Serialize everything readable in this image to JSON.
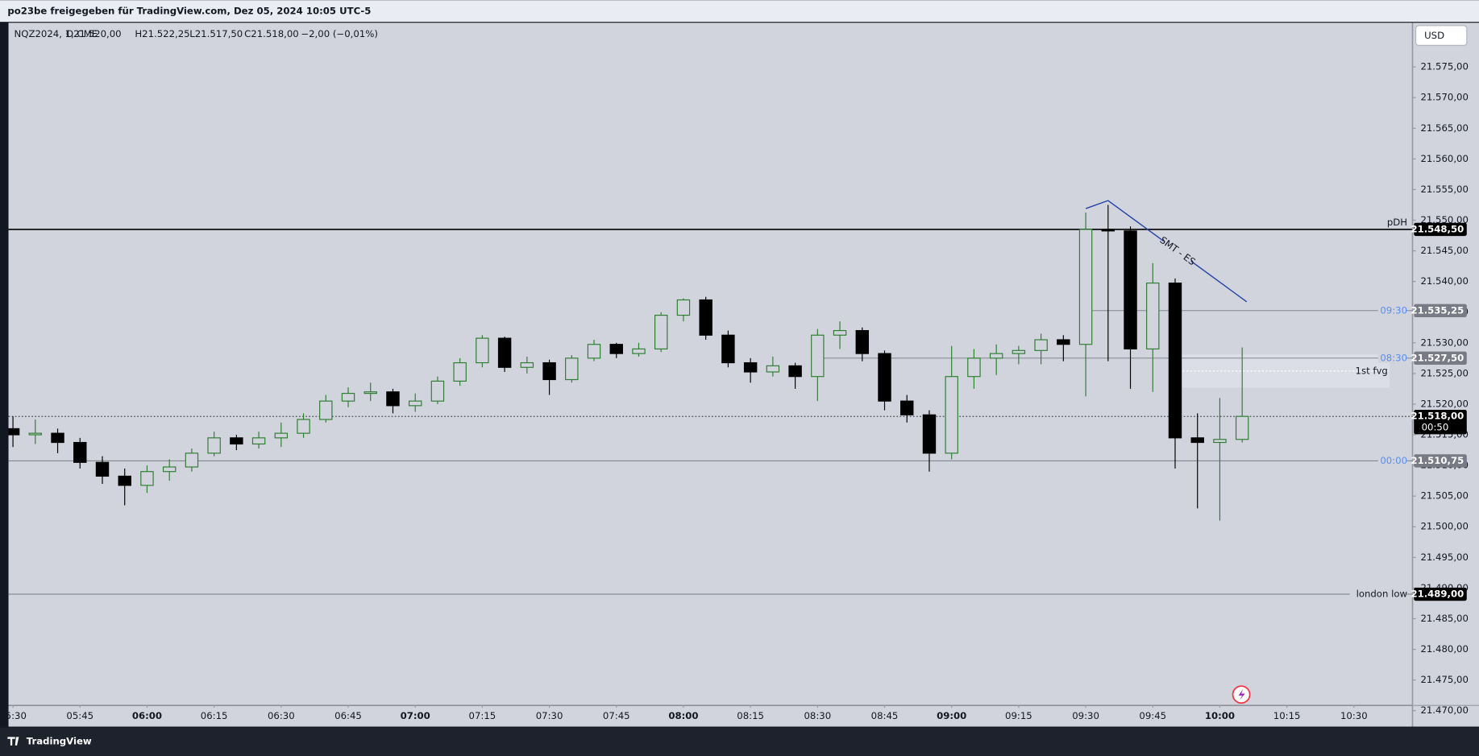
{
  "header": {
    "title": "po23be freigegeben für TradingView.com, Dez 05, 2024 10:05 UTC-5"
  },
  "footer": {
    "brand": "TradingView"
  },
  "chart_data": {
    "type": "candlestick",
    "legend": {
      "symbol": "NQZ2024, 1, CME",
      "ohlc": [
        "O21.520,00",
        "H21.522,25",
        "L21.517,50",
        "C21.518,00"
      ],
      "change": "−2,00 (−0,01%)"
    },
    "currency": "USD",
    "up_color": "#2e7d32",
    "down_color": "#000000",
    "x": [
      "05:30",
      "05:35",
      "05:40",
      "05:45",
      "05:50",
      "05:55",
      "06:00",
      "06:05",
      "06:10",
      "06:15",
      "06:20",
      "06:25",
      "06:30",
      "06:35",
      "06:40",
      "06:45",
      "06:50",
      "06:55",
      "07:00",
      "07:05",
      "07:10",
      "07:15",
      "07:20",
      "07:25",
      "07:30",
      "07:35",
      "07:40",
      "07:45",
      "07:50",
      "07:55",
      "08:00",
      "08:05",
      "08:10",
      "08:15",
      "08:20",
      "08:25",
      "08:30",
      "08:35",
      "08:40",
      "08:45",
      "08:50",
      "08:55",
      "09:00",
      "09:05",
      "09:10",
      "09:15",
      "09:20",
      "09:25",
      "09:30",
      "09:35",
      "09:40",
      "09:45",
      "09:50",
      "09:55",
      "10:00",
      "10:05"
    ],
    "open": [
      21516,
      21515,
      21515.25,
      21513.75,
      21510.5,
      21508.25,
      21506.75,
      21509,
      21509.75,
      21512,
      21514.5,
      21513.5,
      21514.5,
      21515.25,
      21517.5,
      21520.5,
      21521.75,
      21522,
      21519.75,
      21520.5,
      21523.75,
      21526.75,
      21530.75,
      21526,
      21526.75,
      21524,
      21527.5,
      21529.75,
      21528.25,
      21529,
      21534.5,
      21537,
      21531.25,
      21526.75,
      21525.25,
      21526.25,
      21524.5,
      21531.25,
      21532,
      21528.25,
      21520.5,
      21518.25,
      21512,
      21524.5,
      21527.5,
      21528.25,
      21528.75,
      21530.5,
      21529.75,
      21548.5,
      21548.25,
      21529,
      21539.75,
      21514.5,
      21513.75,
      21514.25
    ],
    "high": [
      21518,
      21517.5,
      21516,
      21514.5,
      21511.5,
      21509.5,
      21510,
      21511,
      21512.75,
      21515.5,
      21515,
      21515.5,
      21517,
      21518.5,
      21521.5,
      21522.75,
      21523.5,
      21522.5,
      21521.75,
      21524.5,
      21527.5,
      21531.25,
      21531,
      21527.75,
      21527.25,
      21528,
      21530.5,
      21530,
      21530,
      21535,
      21537.25,
      21537.5,
      21532,
      21527.5,
      21527.75,
      21526.75,
      21532.25,
      21533.5,
      21532.5,
      21528.75,
      21521.5,
      21519,
      21529.5,
      21529,
      21529.75,
      21529.5,
      21531.5,
      21531.25,
      21551.25,
      21552.5,
      21549,
      21543,
      21540.5,
      21518.5,
      21521,
      21529.25
    ],
    "low": [
      21513,
      21513.5,
      21512,
      21509.5,
      21507,
      21503.5,
      21505.5,
      21507.5,
      21509,
      21511.5,
      21512.5,
      21512.75,
      21513,
      21514.5,
      21517,
      21519.5,
      21520.5,
      21518.5,
      21518.75,
      21520,
      21523,
      21526,
      21525.25,
      21525,
      21521.5,
      21523.5,
      21527,
      21527.5,
      21527.75,
      21528.5,
      21533.5,
      21530.5,
      21526,
      21523.5,
      21524.5,
      21522.5,
      21520.5,
      21529,
      21527,
      21519,
      21517,
      21509,
      21511,
      21522.5,
      21524.75,
      21526.5,
      21526.5,
      21527,
      21521.25,
      21527,
      21522.5,
      21522,
      21509.5,
      21503,
      21501,
      21513.75
    ],
    "close": [
      21515,
      21515.25,
      21513.75,
      21510.5,
      21508.25,
      21506.75,
      21509,
      21509.75,
      21512,
      21514.5,
      21513.5,
      21514.5,
      21515.25,
      21517.5,
      21520.5,
      21521.75,
      21522,
      21519.75,
      21520.5,
      21523.75,
      21526.75,
      21530.75,
      21526,
      21526.75,
      21524,
      21527.5,
      21529.75,
      21528.25,
      21529,
      21534.5,
      21537,
      21531.25,
      21526.75,
      21525.25,
      21526.25,
      21524.5,
      21531.25,
      21532,
      21528.25,
      21520.5,
      21518.25,
      21512,
      21524.5,
      21527.5,
      21528.25,
      21528.75,
      21530.5,
      21529.75,
      21548.5,
      21548.25,
      21529,
      21539.75,
      21514.5,
      21513.75,
      21514.25,
      21518
    ],
    "xlim": [
      "05:29",
      "10:43"
    ],
    "xticks": [
      "05:30",
      "05:45",
      "06:00",
      "06:15",
      "06:30",
      "06:45",
      "07:00",
      "07:15",
      "07:30",
      "07:45",
      "08:00",
      "08:15",
      "08:30",
      "08:45",
      "09:00",
      "09:15",
      "09:30",
      "09:45",
      "10:00",
      "10:15",
      "10:30"
    ],
    "ylim": [
      21467.4,
      21582.2
    ],
    "yticks": [
      {
        "value": 21470,
        "label": "21.470,00"
      },
      {
        "value": 21475,
        "label": "21.475,00"
      },
      {
        "value": 21480,
        "label": "21.480,00"
      },
      {
        "value": 21485,
        "label": "21.485,00"
      },
      {
        "value": 21490,
        "label": "21.490,00"
      },
      {
        "value": 21495,
        "label": "21.495,00"
      },
      {
        "value": 21500,
        "label": "21.500,00"
      },
      {
        "value": 21505,
        "label": "21.505,00"
      },
      {
        "value": 21510,
        "label": "21.510,00"
      },
      {
        "value": 21515,
        "label": "21.515,00"
      },
      {
        "value": 21520,
        "label": "21.520,00"
      },
      {
        "value": 21525,
        "label": "21.525,00"
      },
      {
        "value": 21530,
        "label": "21.530,00"
      },
      {
        "value": 21535,
        "label": "21.535,00"
      },
      {
        "value": 21540,
        "label": "21.540,00"
      },
      {
        "value": 21545,
        "label": "21.545,00"
      },
      {
        "value": 21550,
        "label": "21.550,00"
      },
      {
        "value": 21555,
        "label": "21.555,00"
      },
      {
        "value": 21560,
        "label": "21.560,00"
      },
      {
        "value": 21565,
        "label": "21.565,00"
      },
      {
        "value": 21570,
        "label": "21.570,00"
      },
      {
        "value": 21575,
        "label": "21.575,00"
      }
    ],
    "grid": false,
    "levels": [
      {
        "name": "pDH",
        "value": 21548.5,
        "value_label": "21.548,50",
        "color": "#000000",
        "tag_color": "#000000"
      },
      {
        "name": "09:30",
        "value": 21535.25,
        "value_label": "21.535,25",
        "color": "#787b86",
        "tag_color": "#787b86",
        "start": "09:30"
      },
      {
        "name": "08:30",
        "value": 21527.5,
        "value_label": "21.527,50",
        "color": "#787b86",
        "tag_color": "#787b86",
        "start": "08:30"
      },
      {
        "name": "00:00",
        "value": 21510.75,
        "value_label": "21.510,75",
        "color": "#787b86",
        "tag_color": "#787b86"
      },
      {
        "name": "london low",
        "value": 21489,
        "value_label": "21.489,00",
        "color": "#787b86",
        "tag_color": "#000000"
      }
    ],
    "current": {
      "value": 21518,
      "value_label": "21.518,00",
      "countdown": "00:50"
    },
    "fvg": {
      "label": "1st fvg",
      "start": "09:50",
      "end": "10:38",
      "top": 21528.1,
      "bottom": 21522.7
    },
    "smt": {
      "label": "SMT - ES",
      "x": [
        "09:30",
        "09:35",
        "10:06"
      ],
      "y": [
        21551.9,
        21553.2,
        21536.7
      ]
    }
  }
}
